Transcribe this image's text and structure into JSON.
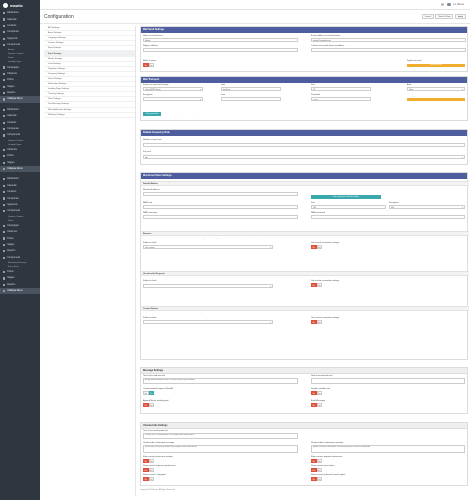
{
  "app": {
    "name": "mautic"
  },
  "sidebar": {
    "groups": [
      {
        "items": [
          {
            "label": "Dashboard",
            "sub": false
          },
          {
            "label": "Calendar",
            "sub": false
          },
          {
            "label": "Contacts",
            "sub": false
          },
          {
            "label": "Companies",
            "sub": false
          },
          {
            "label": "Segments",
            "sub": false
          },
          {
            "label": "Components",
            "sub": false
          },
          {
            "label": "Assets",
            "sub": true
          },
          {
            "label": "Dynamic Content",
            "sub": true
          },
          {
            "label": "Forms",
            "sub": true
          },
          {
            "label": "Landing Pages",
            "sub": true
          },
          {
            "label": "Campaigns",
            "sub": false
          },
          {
            "label": "Channels",
            "sub": false
          },
          {
            "label": "Points",
            "sub": false
          },
          {
            "label": "Stages",
            "sub": false
          },
          {
            "label": "Reports",
            "sub": false
          },
          {
            "label": "Collapse Menu",
            "sub": false,
            "active": true
          }
        ]
      },
      {
        "items": [
          {
            "label": "Dashboard",
            "sub": false
          },
          {
            "label": "Calendar",
            "sub": false
          },
          {
            "label": "Contacts",
            "sub": false
          },
          {
            "label": "Companies",
            "sub": false
          },
          {
            "label": "Components",
            "sub": false
          },
          {
            "label": "Dynamic Content",
            "sub": true
          },
          {
            "label": "Landing Pages",
            "sub": true
          },
          {
            "label": "Channels",
            "sub": false
          },
          {
            "label": "Points",
            "sub": false
          },
          {
            "label": "Stages",
            "sub": false
          },
          {
            "label": "Collapse Menu",
            "sub": false,
            "active": true
          }
        ]
      },
      {
        "items": [
          {
            "label": "Dashboard",
            "sub": false
          },
          {
            "label": "Calendar",
            "sub": false
          },
          {
            "label": "Contacts",
            "sub": false
          },
          {
            "label": "Companies",
            "sub": false
          },
          {
            "label": "Segments",
            "sub": false
          },
          {
            "label": "Components",
            "sub": false
          },
          {
            "label": "Dynamic Content",
            "sub": true
          },
          {
            "label": "Forms",
            "sub": true
          },
          {
            "label": "Campaigns",
            "sub": false
          },
          {
            "label": "Channels",
            "sub": false
          },
          {
            "label": "Points",
            "sub": false
          },
          {
            "label": "Stages",
            "sub": false
          },
          {
            "label": "Reports",
            "sub": false
          },
          {
            "label": "Components",
            "sub": false
          },
          {
            "label": "Marketing Messages",
            "sub": true
          },
          {
            "label": "Focus Items",
            "sub": true
          },
          {
            "label": "Points",
            "sub": false
          },
          {
            "label": "Stages",
            "sub": false
          },
          {
            "label": "Reports",
            "sub": false
          },
          {
            "label": "Collapse Menu",
            "sub": false,
            "active": true
          }
        ]
      }
    ]
  },
  "topbar": {
    "user": "Lu Homes"
  },
  "header": {
    "title": "Configuration",
    "buttons": [
      "Cancel",
      "Save & Close",
      "Apply"
    ]
  },
  "subnav": [
    "API Settings",
    "Asset Settings",
    "Campaign Settings",
    "Content Settings",
    "Form Settings",
    "Email Settings",
    "Mautic Settings",
    "Lead Settings",
    "Paginator Settings",
    "Company Settings",
    "Social Settings",
    "Notification Settings",
    "Landing Page Settings",
    "Tracking Settings",
    "Point Settings",
    "Text Message Settings",
    "Web Notification Settings",
    "Webhook Settings"
  ],
  "subnav_active": 5,
  "mail_send": {
    "title": "Mail Send Settings",
    "name_label": "Name to send mail as",
    "name_value": "Mautic",
    "email_label": "E-mail address to send mail from",
    "email_value": "mautic@example.com",
    "replyto_label": "Reply to address",
    "returnpath_label": "Custom return path (bounce) address",
    "mailer_label": "Mailer is owner",
    "spool_label": "Spool test email",
    "test_btn": "Send test email"
  },
  "transport": {
    "title": "Mail Transport",
    "service_label": "Service to send mail through",
    "service_value": "Other SMTP Server",
    "host_label": "Host",
    "host_value": "localhost",
    "port_label": "Port",
    "port_value": "25",
    "auth_label": "Auth",
    "auth_value": "None",
    "encryption_label": "Encryption",
    "user_label": "User",
    "pass_label": "Password",
    "pass_value": "••••••••",
    "test_btn": "Test connection",
    "result_prefix": "Please save the configuration before testing",
    "result_link": "connection to Mailer"
  },
  "frequency": {
    "title": "Default Frequency Rule",
    "count_label": "Number of each time",
    "count_value": "",
    "period_label": "Per each",
    "period_value": "day"
  },
  "monitored": {
    "title": "Monitored Inbox Settings",
    "default_section": "Default Mailbox",
    "mon_address_label": "Monitored address",
    "mon_address_value": "",
    "test_btn": "Test connection and fetch folders",
    "host_label": "IMAP host",
    "port_label": "Port",
    "port_value": "993",
    "enc_label": "Encryption",
    "enc_value": "SSL",
    "user_label": "IMAP username",
    "pass_label": "IMAP password",
    "pass_value": "",
    "bounces_section": "Bounces",
    "bounces_desc": "Mautic can monitor this mailbox for bounced emails. Bounced emails are automatically processed and tagged with the IMAP server so that they can be processed by the cron job.",
    "folder_label": "Folder to check",
    "folder_value": "Use custom",
    "override_label": "Use custom connection settings",
    "unsub_section": "Unsubscribe Requests",
    "replies_section": "Contact Replies",
    "replies_desc": "Mautic can monitor this mailbox to track replies to emails sent from Mautic campaigns."
  },
  "message": {
    "title": "Message Settings",
    "webview_label": "Text for the web view link",
    "webview_value": "Having trouble reading this email? Click here to view it in your browser",
    "unsub_text_label": "Default unsubscribe text",
    "convert_label": "Convert embed images to Base64",
    "disable_track_label": "Disable trackable urls",
    "append_label": "Append Mautic tracking pixel",
    "build_label": "Build Messages"
  },
  "unsubscribe": {
    "title": "Unsubscribe Settings",
    "text_label": "Text for the unsubscribe link",
    "text_value": "<a href=\"|URL|\">Unsubscribe</a> to no longer receive emails from us.",
    "confirm_label": "Unsubscribe confirmation message",
    "confirm_value": "We are sorry to see you go! |EMAIL| will no longer receive emails from us.",
    "resubscribe_label": "Resubscribed confirmation message",
    "resubscribe_value": "|EMAIL| has been re-subscribed. If this was by mistake, click here to unsubscribe.",
    "show_pref_label": "Show contact preference settings",
    "show_seg_label": "Show contact segment preferences",
    "show_freq_label": "Show contact frequency preferences",
    "show_pause_label": "Show contact pause dates",
    "show_categories_label": "Show contact's categories",
    "show_channels_label": "Show contact preferred channel option"
  },
  "toggle_text": {
    "no": "No",
    "yes": "Yes"
  },
  "footer": "Copyright 2019 Mautic. All Rights Reserved."
}
